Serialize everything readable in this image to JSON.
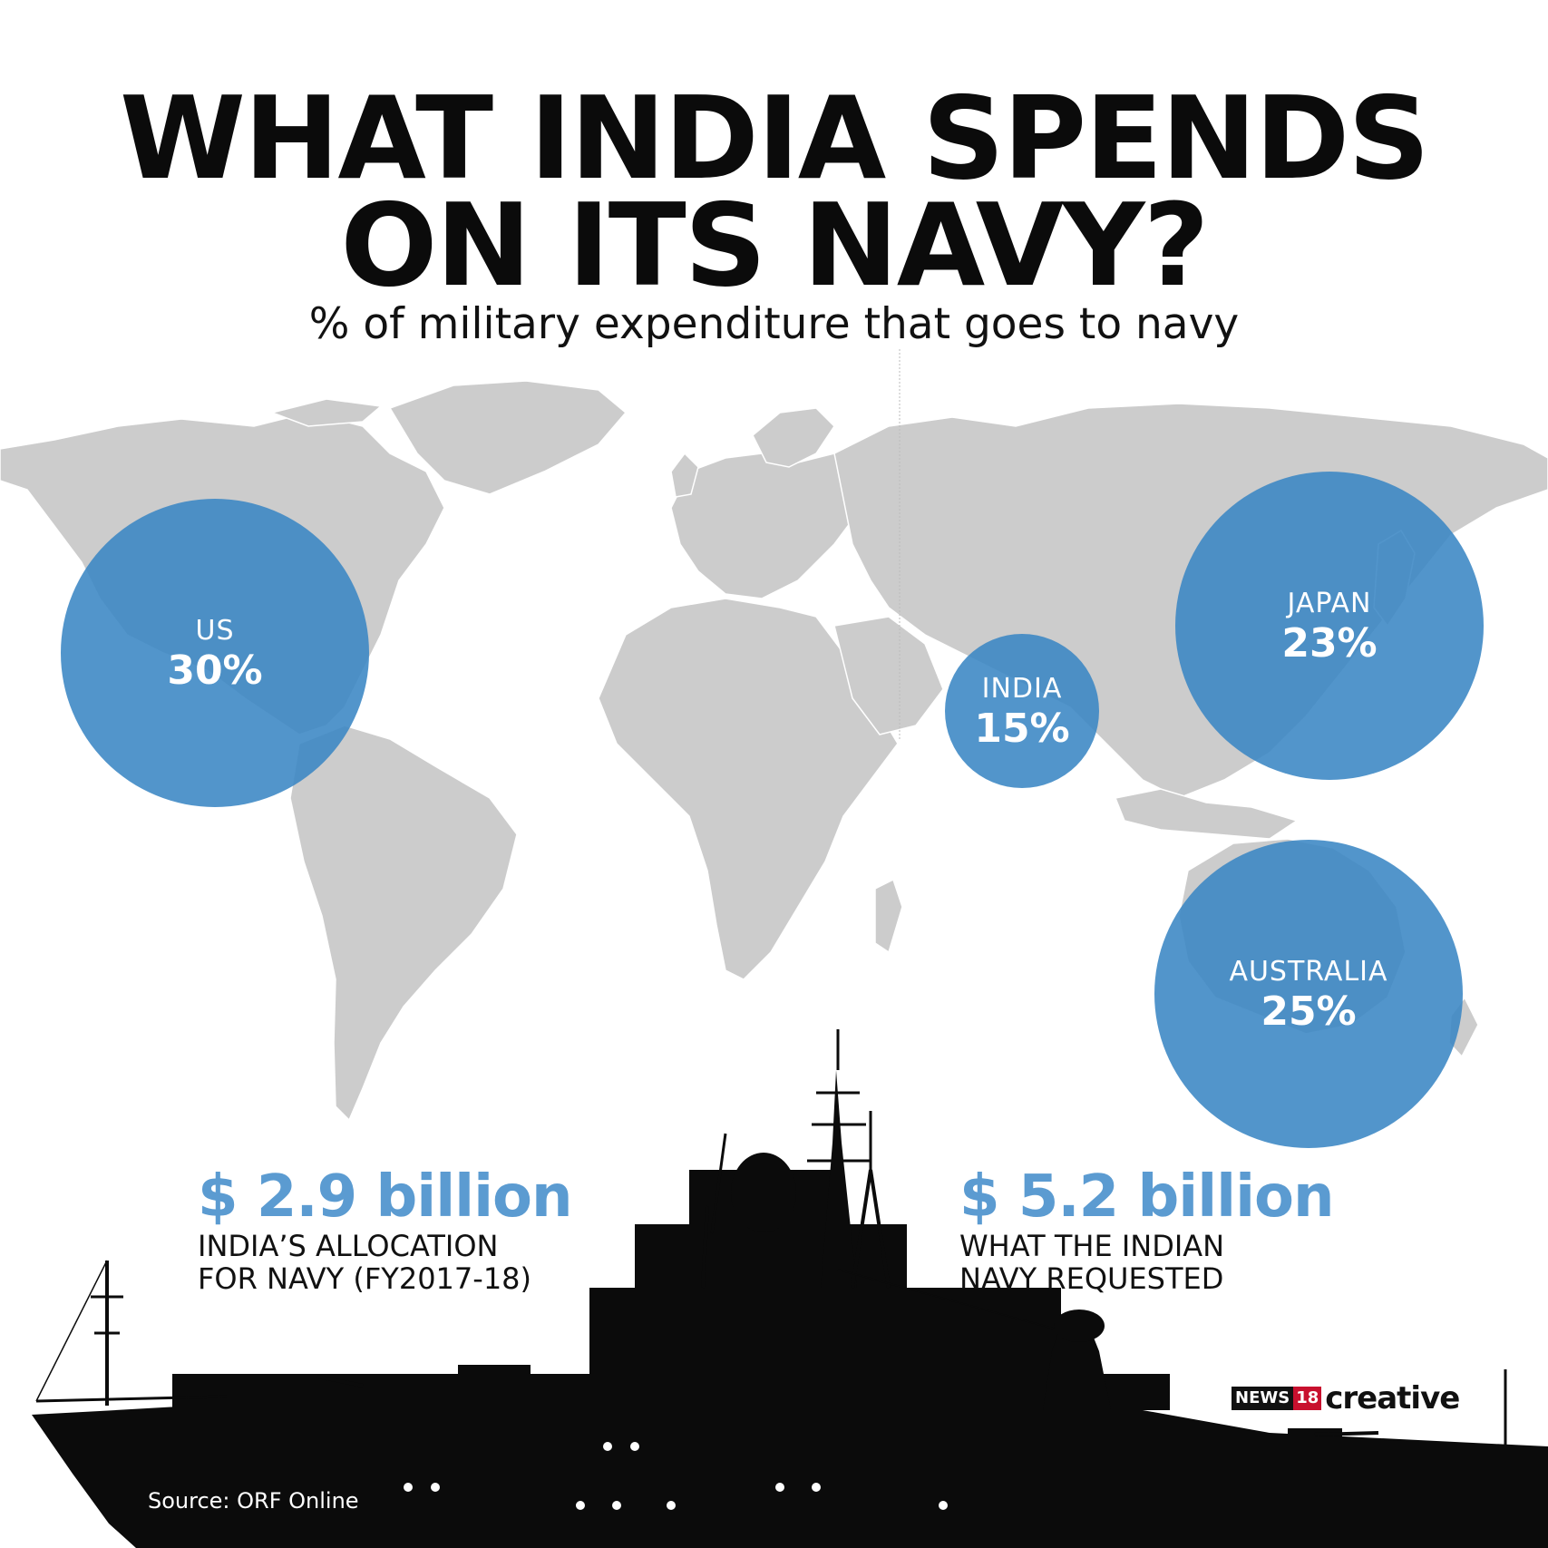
{
  "header": {
    "title_line1": "WHAT INDIA SPENDS",
    "title_line2": "ON ITS NAVY?",
    "subtitle": "% of military expenditure that goes to navy"
  },
  "countries": [
    {
      "name": "US",
      "percent": "30%"
    },
    {
      "name": "INDIA",
      "percent": "15%"
    },
    {
      "name": "JAPAN",
      "percent": "23%"
    },
    {
      "name": "AUSTRALIA",
      "percent": "25%"
    }
  ],
  "stats": [
    {
      "amount": "$ 2.9 billion",
      "line1": "INDIA’S ALLOCATION",
      "line2": "FOR NAVY (FY2017-18)"
    },
    {
      "amount": "$ 5.2 billion",
      "line1": "WHAT THE INDIAN",
      "line2": "NAVY REQUESTED"
    }
  ],
  "branding": {
    "news": "NEWS",
    "num": "18",
    "creative": "creative"
  },
  "source": "Source: ORF Online",
  "colors": {
    "circle": "#3a86c4",
    "map": "#cccccc",
    "accent": "#5b9bd1",
    "ship": "#0b0b0b"
  }
}
